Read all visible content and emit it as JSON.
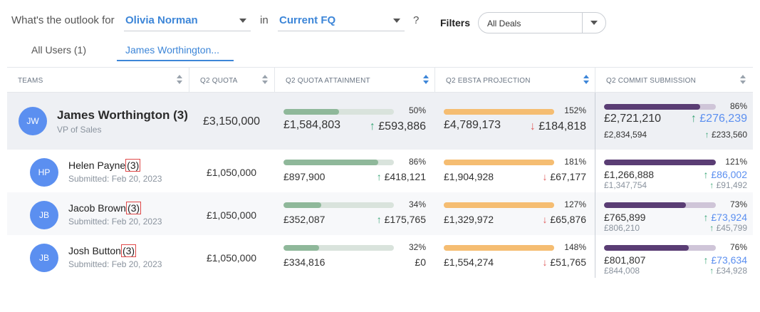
{
  "filter_bar": {
    "question_prefix": "What's the outlook for",
    "person_value": "Olivia Norman",
    "in_label": "in",
    "period_value": "Current FQ",
    "question_mark": "?",
    "filters_label": "Filters",
    "deals_value": "All Deals"
  },
  "tabs": [
    {
      "label": "All Users (1)",
      "active": false
    },
    {
      "label": "James Worthington...",
      "active": true
    }
  ],
  "columns": [
    "TEAMS",
    "Q2 QUOTA",
    "Q2 QUOTA ATTAINMENT",
    "Q2 EBSTA PROJECTION",
    "Q2 COMMIT SUBMISSION"
  ],
  "colors": {
    "accent": "#3d86d8",
    "avatar": "#5b8ff0",
    "attainment_fill": "#8fb89a",
    "attainment_track": "#d9e3dc",
    "projection_fill": "#f5bd72",
    "commit_fill": "#5a3d74",
    "commit_track": "#cfc5d8",
    "up_arrow": "#3aa577",
    "down_arrow": "#e05c5c"
  },
  "lead": {
    "initials": "JW",
    "name": "James Worthington",
    "count": "(3)",
    "title": "VP of Sales",
    "quota": "£3,150,000",
    "attainment": {
      "pct": "50%",
      "fraction": 0.5,
      "value": "£1,584,803",
      "delta": "£593,886",
      "dir": "up"
    },
    "projection": {
      "pct": "152%",
      "fraction": 1.0,
      "value": "£4,789,173",
      "delta": "£184,818",
      "dir": "down"
    },
    "commit": {
      "pct": "86%",
      "fraction": 0.86,
      "value": "£2,721,210",
      "delta": "£276,239",
      "prev_value": "£2,834,594",
      "prev_delta": "£233,560"
    }
  },
  "rows": [
    {
      "initials": "HP",
      "name": "Helen Payne",
      "count": "(3)",
      "submitted": "Submitted: Feb 20, 2023",
      "quota": "£1,050,000",
      "attainment": {
        "pct": "86%",
        "fraction": 0.86,
        "value": "£897,900",
        "delta": "£418,121",
        "dir": "up"
      },
      "projection": {
        "pct": "181%",
        "fraction": 1.0,
        "value": "£1,904,928",
        "delta": "£67,177",
        "dir": "down"
      },
      "commit": {
        "pct": "121%",
        "fraction": 1.0,
        "value": "£1,266,888",
        "delta": "£86,002",
        "prev_value": "£1,347,754",
        "prev_delta": "£91,492"
      }
    },
    {
      "initials": "JB",
      "name": "Jacob Brown",
      "count": "(3)",
      "submitted": "Submitted: Feb 20, 2023",
      "quota": "£1,050,000",
      "attainment": {
        "pct": "34%",
        "fraction": 0.34,
        "value": "£352,087",
        "delta": "£175,765",
        "dir": "up"
      },
      "projection": {
        "pct": "127%",
        "fraction": 1.0,
        "value": "£1,329,972",
        "delta": "£65,876",
        "dir": "down"
      },
      "commit": {
        "pct": "73%",
        "fraction": 0.73,
        "value": "£765,899",
        "delta": "£73,924",
        "prev_value": "£806,210",
        "prev_delta": "£45,799"
      }
    },
    {
      "initials": "JB",
      "name": "Josh Button",
      "count": "(3)",
      "submitted": "Submitted: Feb 20, 2023",
      "quota": "£1,050,000",
      "attainment": {
        "pct": "32%",
        "fraction": 0.32,
        "value": "£334,816",
        "delta": "£0",
        "dir": "none"
      },
      "projection": {
        "pct": "148%",
        "fraction": 1.0,
        "value": "£1,554,274",
        "delta": "£51,765",
        "dir": "down"
      },
      "commit": {
        "pct": "76%",
        "fraction": 0.76,
        "value": "£801,807",
        "delta": "£73,634",
        "prev_value": "£844,008",
        "prev_delta": "£34,928"
      }
    }
  ]
}
